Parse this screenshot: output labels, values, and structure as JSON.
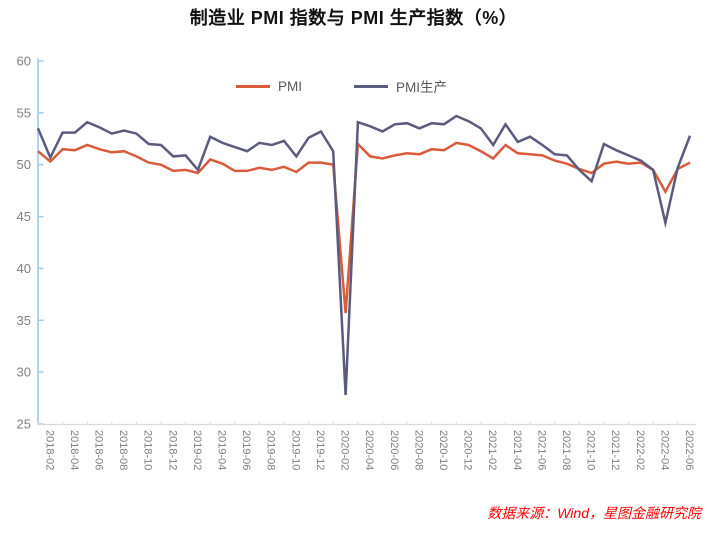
{
  "source_note": "数据来源：Wind，星图金融研究院",
  "style_colors": {
    "y_axis": "#A0C8E8",
    "x_axis": "#D9D9D9",
    "tick_label": "#808080",
    "legend_text": "#595959",
    "source_text": "#FF0000",
    "title_text": "#111111"
  },
  "chart_data": {
    "type": "line",
    "title": "制造业 PMI 指数与 PMI 生产指数（%）",
    "grid": false,
    "legend_position": "top-center",
    "ylim": [
      25,
      60
    ],
    "y_ticks": [
      60,
      55,
      50,
      45,
      40,
      35,
      30,
      25
    ],
    "x_months": [
      "2018-01",
      "2018-02",
      "2018-03",
      "2018-04",
      "2018-05",
      "2018-06",
      "2018-07",
      "2018-08",
      "2018-09",
      "2018-10",
      "2018-11",
      "2018-12",
      "2019-01",
      "2019-02",
      "2019-03",
      "2019-04",
      "2019-05",
      "2019-06",
      "2019-07",
      "2019-08",
      "2019-09",
      "2019-10",
      "2019-11",
      "2019-12",
      "2020-01",
      "2020-02",
      "2020-03",
      "2020-04",
      "2020-05",
      "2020-06",
      "2020-07",
      "2020-08",
      "2020-09",
      "2020-10",
      "2020-11",
      "2020-12",
      "2021-01",
      "2021-02",
      "2021-03",
      "2021-04",
      "2021-05",
      "2021-06",
      "2021-07",
      "2021-08",
      "2021-09",
      "2021-10",
      "2021-11",
      "2021-12",
      "2022-01",
      "2022-02",
      "2022-03",
      "2022-04",
      "2022-05",
      "2022-06"
    ],
    "x_tick_labels": [
      "2018-02",
      "2018-04",
      "2018-06",
      "2018-08",
      "2018-10",
      "2018-12",
      "2019-02",
      "2019-04",
      "2019-06",
      "2019-08",
      "2019-10",
      "2019-12",
      "2020-02",
      "2020-04",
      "2020-06",
      "2020-08",
      "2020-10",
      "2020-12",
      "2021-02",
      "2021-04",
      "2021-06",
      "2021-08",
      "2021-10",
      "2021-12",
      "2022-02",
      "2022-04",
      "2022-06"
    ],
    "series": [
      {
        "name": "PMI",
        "color": "#D85B3C",
        "values": [
          51.3,
          50.3,
          51.5,
          51.4,
          51.9,
          51.5,
          51.2,
          51.3,
          50.8,
          50.2,
          50.0,
          49.4,
          49.5,
          49.2,
          50.5,
          50.1,
          49.4,
          49.4,
          49.7,
          49.5,
          49.8,
          49.3,
          50.2,
          50.2,
          50.0,
          35.7,
          52.0,
          50.8,
          50.6,
          50.9,
          51.1,
          51.0,
          51.5,
          51.4,
          52.1,
          51.9,
          51.3,
          50.6,
          51.9,
          51.1,
          51.0,
          50.9,
          50.4,
          50.1,
          49.6,
          49.2,
          50.1,
          50.3,
          50.1,
          50.2,
          49.5,
          47.4,
          49.6,
          50.2
        ]
      },
      {
        "name": "PMI生产",
        "color": "#5B5B7E",
        "values": [
          53.5,
          50.7,
          53.1,
          53.1,
          54.1,
          53.6,
          53.0,
          53.3,
          53.0,
          52.0,
          51.9,
          50.8,
          50.9,
          49.5,
          52.7,
          52.1,
          51.7,
          51.3,
          52.1,
          51.9,
          52.3,
          50.8,
          52.6,
          53.2,
          51.3,
          27.8,
          54.1,
          53.7,
          53.2,
          53.9,
          54.0,
          53.5,
          54.0,
          53.9,
          54.7,
          54.2,
          53.5,
          51.9,
          53.9,
          52.2,
          52.7,
          51.9,
          51.0,
          50.9,
          49.5,
          48.4,
          52.0,
          51.4,
          50.9,
          50.4,
          49.5,
          44.4,
          49.7,
          52.8
        ]
      }
    ]
  }
}
